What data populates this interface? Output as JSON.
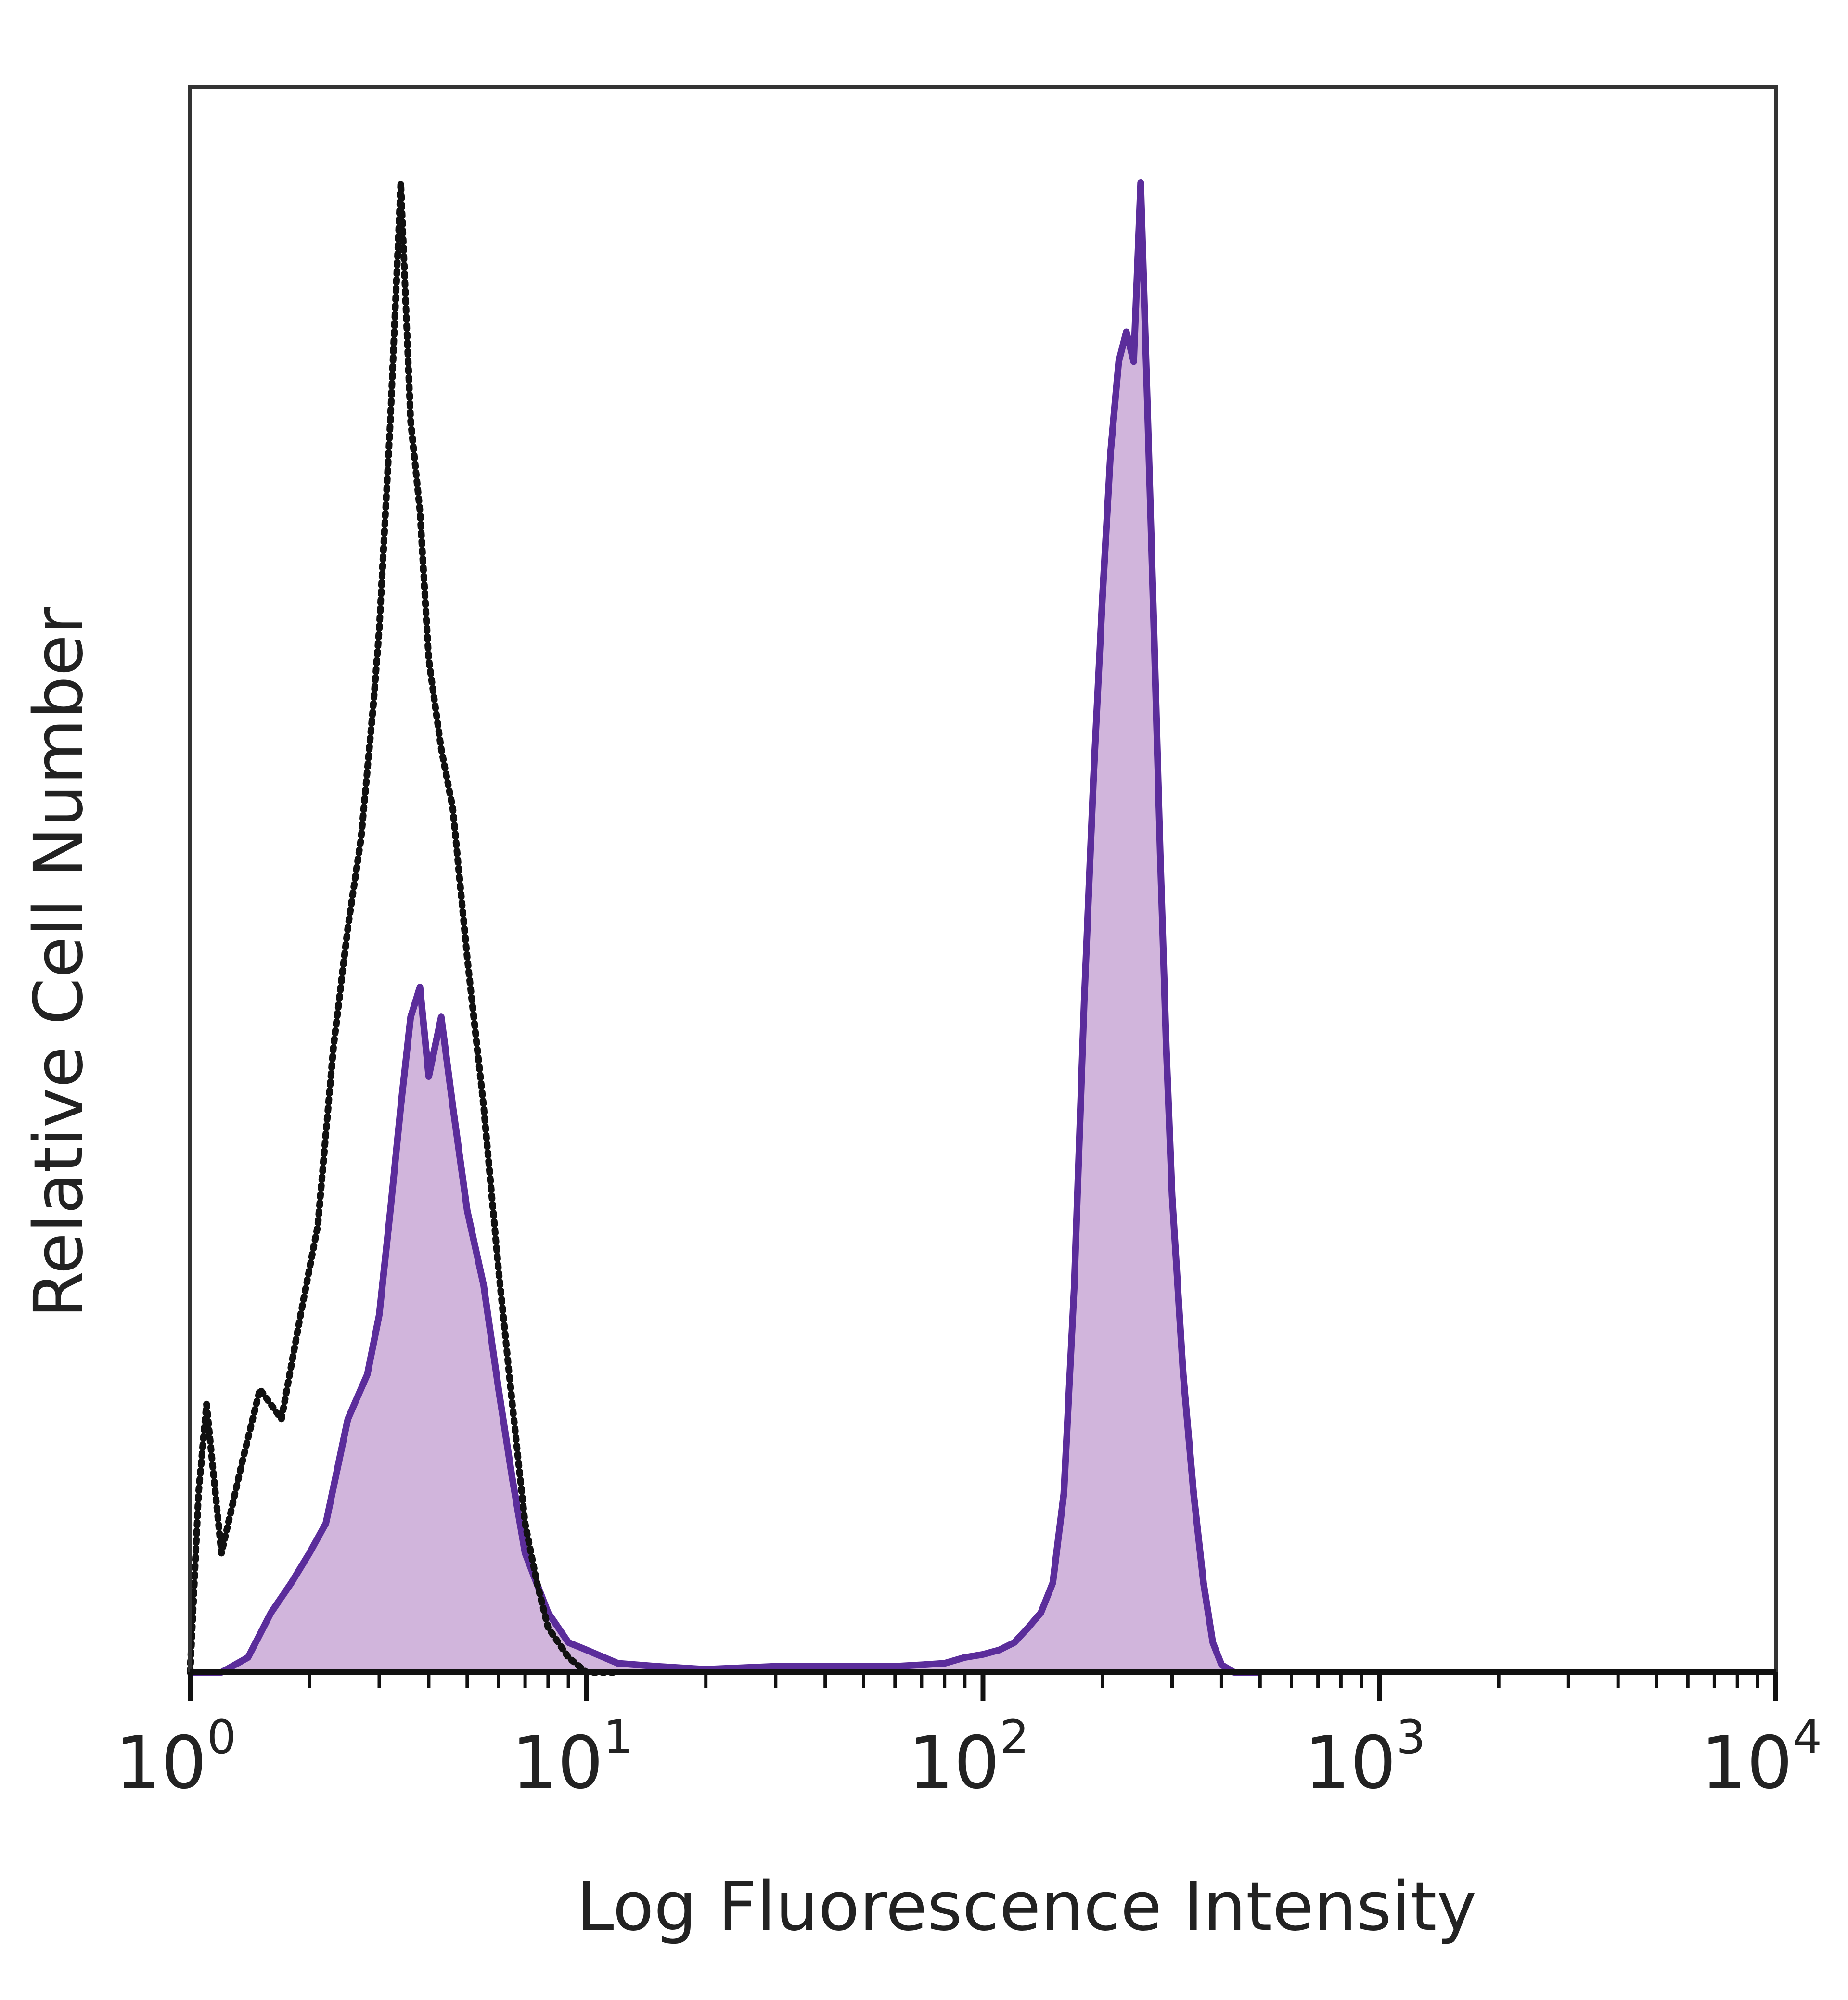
{
  "chart_data": {
    "type": "area",
    "xlabel": "Log Fluorescence Intensity",
    "ylabel": "Relative Cell Number",
    "x_scale": "log10",
    "xlim": [
      1,
      10000
    ],
    "ylim": [
      0,
      1.0
    ],
    "grid": false,
    "legend": "none",
    "x_ticks": [
      {
        "base": "10",
        "exp": "0"
      },
      {
        "base": "10",
        "exp": "1"
      },
      {
        "base": "10",
        "exp": "2"
      },
      {
        "base": "10",
        "exp": "3"
      },
      {
        "base": "10",
        "exp": "4"
      }
    ],
    "series": [
      {
        "style": "dotted-outline",
        "color": "#111111",
        "x": [
          1.0,
          1.05,
          1.1,
          1.2,
          1.35,
          1.5,
          1.7,
          1.9,
          2.1,
          2.3,
          2.5,
          2.7,
          2.9,
          3.0,
          3.2,
          3.4,
          3.6,
          3.8,
          4.0,
          4.3,
          4.6,
          5.0,
          5.5,
          6.0,
          6.5,
          7.0,
          7.5,
          8.0,
          9.0,
          10.0,
          11.0,
          12.0
        ],
        "y": [
          0.0,
          0.12,
          0.18,
          0.08,
          0.14,
          0.19,
          0.17,
          0.24,
          0.3,
          0.42,
          0.5,
          0.56,
          0.65,
          0.7,
          0.84,
          1.0,
          0.84,
          0.78,
          0.68,
          0.62,
          0.58,
          0.48,
          0.38,
          0.27,
          0.18,
          0.1,
          0.06,
          0.03,
          0.01,
          0.0,
          0.0,
          0.0
        ]
      },
      {
        "style": "filled",
        "color": "#5b2d9b",
        "fill": "#c9a8d6",
        "x": [
          1.0,
          1.2,
          1.4,
          1.6,
          1.8,
          2.0,
          2.2,
          2.5,
          2.8,
          3.0,
          3.2,
          3.4,
          3.6,
          3.8,
          4.0,
          4.3,
          4.6,
          5.0,
          5.5,
          6.0,
          6.5,
          7.0,
          8.0,
          9.0,
          10.0,
          12.0,
          15.0,
          20.0,
          30.0,
          40.0,
          50.0,
          60.0,
          70.0,
          80.0,
          90.0,
          100.0,
          110.0,
          120.0,
          130.0,
          140.0,
          150.0,
          160.0,
          170.0,
          180.0,
          190.0,
          200.0,
          210.0,
          220.0,
          230.0,
          240.0,
          250.0,
          260.0,
          270.0,
          280.0,
          290.0,
          300.0,
          320.0,
          340.0,
          360.0,
          380.0,
          400.0,
          430.0,
          460.0,
          500.0
        ],
        "y": [
          0.0,
          0.0,
          0.01,
          0.04,
          0.06,
          0.08,
          0.1,
          0.17,
          0.2,
          0.24,
          0.31,
          0.38,
          0.44,
          0.46,
          0.4,
          0.44,
          0.38,
          0.31,
          0.26,
          0.19,
          0.13,
          0.08,
          0.04,
          0.02,
          0.015,
          0.006,
          0.004,
          0.002,
          0.004,
          0.004,
          0.004,
          0.004,
          0.005,
          0.006,
          0.01,
          0.012,
          0.015,
          0.02,
          0.03,
          0.04,
          0.06,
          0.12,
          0.26,
          0.45,
          0.6,
          0.72,
          0.82,
          0.88,
          0.9,
          0.88,
          1.0,
          0.85,
          0.7,
          0.55,
          0.42,
          0.32,
          0.2,
          0.12,
          0.06,
          0.02,
          0.005,
          0.0,
          0.0,
          0.0
        ]
      }
    ]
  }
}
